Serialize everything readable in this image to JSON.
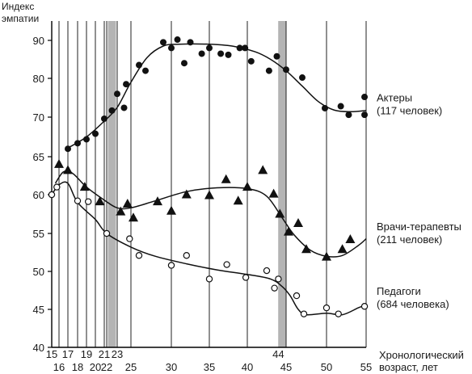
{
  "chart_data": {
    "type": "scatter",
    "ylabel_lines": [
      "Индекс",
      "эмпатии"
    ],
    "xlabel_lines": [
      "Хронологический",
      "возраст, лет"
    ],
    "ylim": [
      40,
      95
    ],
    "xlim": [
      15,
      55
    ],
    "y_ticks": [
      "40",
      "45",
      "50",
      "55",
      "60",
      "65",
      "70",
      "80",
      "90"
    ],
    "y_tick_values": [
      40,
      45,
      50,
      55,
      60,
      65,
      70,
      80,
      90
    ],
    "x_ticks_upper": [
      "15",
      "17",
      "19",
      "21",
      "23",
      "44"
    ],
    "x_ticks_upper_values": [
      15,
      17,
      19,
      21,
      23,
      44
    ],
    "x_ticks_lower": [
      "16",
      "18",
      "20",
      "22",
      "25",
      "30",
      "35",
      "40",
      "45",
      "50",
      "55"
    ],
    "x_ticks_lower_values": [
      16,
      18,
      20,
      22,
      25,
      30,
      35,
      40,
      45,
      50,
      55
    ],
    "vertical_grid_x": [
      15,
      16,
      17,
      18,
      19,
      20,
      21,
      22,
      23,
      25,
      30,
      35,
      40,
      45,
      50,
      55
    ],
    "shaded_bands_x": [
      22.5,
      44.5
    ],
    "series": [
      {
        "name": "Актеры",
        "label_lines": [
          "Актеры",
          "(117 человек)"
        ],
        "marker": "filled-circle",
        "points": [
          [
            17,
            66
          ],
          [
            18,
            66.7
          ],
          [
            19,
            67.2
          ],
          [
            20,
            67.9
          ],
          [
            21,
            69.8
          ],
          [
            22.5,
            71.7
          ],
          [
            23,
            76
          ],
          [
            24,
            72.4
          ],
          [
            24.3,
            78.5
          ],
          [
            26,
            83.5
          ],
          [
            26.8,
            82
          ],
          [
            29,
            89.5
          ],
          [
            30,
            88
          ],
          [
            30.8,
            90.2
          ],
          [
            31.7,
            84
          ],
          [
            32.5,
            89.5
          ],
          [
            34,
            86.5
          ],
          [
            35,
            88
          ],
          [
            36.5,
            86.5
          ],
          [
            37.5,
            86.2
          ],
          [
            39,
            88
          ],
          [
            39.7,
            88
          ],
          [
            40.5,
            84.5
          ],
          [
            42.8,
            82
          ],
          [
            43.8,
            85.8
          ],
          [
            45,
            82.3
          ],
          [
            47,
            80.2
          ],
          [
            49.8,
            72.3
          ],
          [
            51.8,
            72.8
          ],
          [
            52.8,
            70.6
          ],
          [
            54.8,
            75.2
          ],
          [
            54.8,
            70.6
          ]
        ],
        "curve": [
          [
            17,
            66.1
          ],
          [
            19,
            67.5
          ],
          [
            21,
            69.5
          ],
          [
            23,
            72.5
          ],
          [
            25,
            79
          ],
          [
            27,
            85.5
          ],
          [
            29,
            88.5
          ],
          [
            31,
            89
          ],
          [
            35,
            89
          ],
          [
            38,
            88.5
          ],
          [
            41,
            87
          ],
          [
            43,
            85
          ],
          [
            45,
            82
          ],
          [
            47,
            78
          ],
          [
            49,
            74
          ],
          [
            51,
            71.8
          ],
          [
            53,
            71.4
          ],
          [
            55,
            71.7
          ]
        ]
      },
      {
        "name": "Врачи-терапевты",
        "label_lines": [
          "Врачи-терапевты",
          "(211 человек)"
        ],
        "marker": "filled-triangle",
        "points": [
          [
            16,
            64
          ],
          [
            17,
            63.2
          ],
          [
            18.8,
            61
          ],
          [
            20.5,
            59.1
          ],
          [
            23.5,
            57.8
          ],
          [
            24.5,
            58.8
          ],
          [
            25.3,
            57
          ],
          [
            28.3,
            59.1
          ],
          [
            30,
            57.9
          ],
          [
            32,
            60
          ],
          [
            35,
            59.9
          ],
          [
            37.2,
            62
          ],
          [
            38.8,
            59.2
          ],
          [
            40,
            61
          ],
          [
            42,
            63.2
          ],
          [
            43.4,
            60.1
          ],
          [
            44.2,
            57.5
          ],
          [
            45.3,
            55.2
          ],
          [
            46.5,
            56.3
          ],
          [
            47.5,
            52.9
          ],
          [
            50,
            51.9
          ],
          [
            52,
            52.9
          ],
          [
            53,
            54.2
          ]
        ],
        "curve": [
          [
            15.5,
            61.5
          ],
          [
            16.5,
            63
          ],
          [
            17.5,
            62.8
          ],
          [
            19,
            61
          ],
          [
            21,
            59.3
          ],
          [
            23,
            58.3
          ],
          [
            25,
            58.3
          ],
          [
            28,
            59.2
          ],
          [
            32,
            60.4
          ],
          [
            36,
            60.9
          ],
          [
            40,
            60.8
          ],
          [
            42.5,
            59.8
          ],
          [
            44.5,
            57
          ],
          [
            46,
            54.8
          ],
          [
            48,
            52.8
          ],
          [
            50,
            52
          ],
          [
            52,
            52.1
          ],
          [
            54,
            53.4
          ],
          [
            55,
            54.3
          ]
        ]
      },
      {
        "name": "Педагоги",
        "label_lines": [
          "Педагоги",
          "(684 человека)"
        ],
        "marker": "open-circle",
        "points": [
          [
            15,
            60
          ],
          [
            15.7,
            61
          ],
          [
            18,
            59.2
          ],
          [
            19.2,
            59.1
          ],
          [
            22,
            55
          ],
          [
            24.8,
            54.3
          ],
          [
            26,
            52.1
          ],
          [
            30,
            50.8
          ],
          [
            32,
            52.1
          ],
          [
            35,
            49
          ],
          [
            37.3,
            50.9
          ],
          [
            39.8,
            49.2
          ],
          [
            42.5,
            50.1
          ],
          [
            43.5,
            47.8
          ],
          [
            44,
            49
          ],
          [
            46.3,
            46.8
          ],
          [
            47.2,
            44.4
          ],
          [
            50,
            45.2
          ],
          [
            51.5,
            44.4
          ],
          [
            54.8,
            45.4
          ]
        ],
        "curve": [
          [
            15,
            60
          ],
          [
            16,
            61.3
          ],
          [
            17,
            61.5
          ],
          [
            18,
            59
          ],
          [
            20,
            56.8
          ],
          [
            22,
            55
          ],
          [
            25,
            53.2
          ],
          [
            28,
            52
          ],
          [
            32,
            51
          ],
          [
            36,
            50.2
          ],
          [
            40,
            49.6
          ],
          [
            43,
            49
          ],
          [
            44.5,
            48
          ],
          [
            45.5,
            46.8
          ],
          [
            46.5,
            45
          ],
          [
            47.5,
            44.3
          ],
          [
            50,
            44.5
          ],
          [
            52,
            44.3
          ],
          [
            54,
            45.2
          ],
          [
            55,
            45.6
          ]
        ]
      }
    ]
  }
}
